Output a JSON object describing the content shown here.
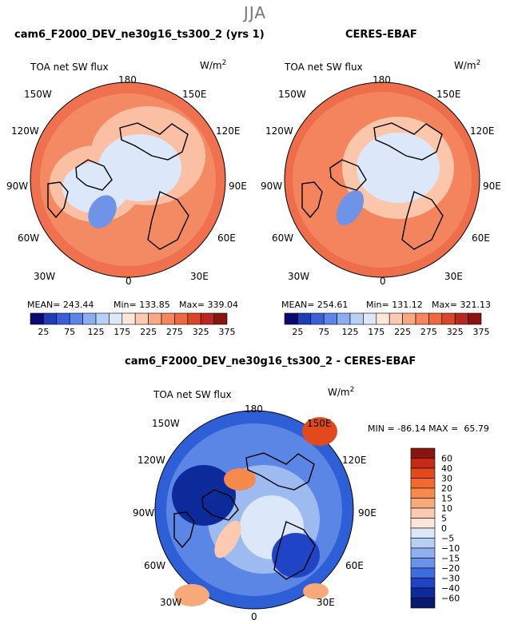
{
  "season": "JJA",
  "panels": [
    {
      "title": "cam6_F2000_DEV_ne30g16_ts300_2 (yrs 1)",
      "variable": "TOA net SW flux",
      "units": "W/m",
      "units_exp": "2",
      "stats": {
        "mean": "MEAN= 243.44",
        "min": "Min= 133.85",
        "max": "Max= 339.04"
      }
    },
    {
      "title": "CERES-EBAF",
      "variable": "TOA net SW flux",
      "units": "W/m",
      "units_exp": "2",
      "stats": {
        "mean": "MEAN= 254.61",
        "min": "Min= 131.12",
        "max": "Max= 321.13"
      }
    }
  ],
  "diff_panel": {
    "title": "cam6_F2000_DEV_ne30g16_ts300_2 - CERES-EBAF",
    "variable": "TOA net SW flux",
    "units": "W/m",
    "units_exp": "2",
    "minmax": "MIN = -86.14 MAX =  65.79"
  },
  "lon_labels": {
    "top": "180",
    "tl": "150W",
    "tr": "150E",
    "ul": "120W",
    "ur": "120E",
    "ml": "90W",
    "mr": "90E",
    "ll": "60W",
    "lr": "60E",
    "bl": "30W",
    "br": "30E",
    "bottom": "0"
  },
  "chart_data": [
    {
      "type": "heatmap",
      "projection": "north-polar-stereographic",
      "title": "cam6_F2000_DEV_ne30g16_ts300_2 (yrs 1)",
      "variable": "TOA net SW flux",
      "units": "W/m2",
      "colorbar": {
        "orientation": "horizontal",
        "levels": [
          25,
          75,
          125,
          175,
          225,
          275,
          325,
          375
        ],
        "colors": [
          "#0a0a6e",
          "#1f3cb5",
          "#3a5fd8",
          "#5b85e8",
          "#8caef0",
          "#b8d0f5",
          "#dce8fa",
          "#fde6da",
          "#fcc9b1",
          "#f9a884",
          "#f58660",
          "#ee6840",
          "#d9462a",
          "#b8281c",
          "#8a1410"
        ]
      },
      "stats": {
        "mean": 243.44,
        "min": 133.85,
        "max": 339.04
      }
    },
    {
      "type": "heatmap",
      "projection": "north-polar-stereographic",
      "title": "CERES-EBAF",
      "variable": "TOA net SW flux",
      "units": "W/m2",
      "colorbar": {
        "orientation": "horizontal",
        "levels": [
          25,
          75,
          125,
          175,
          225,
          275,
          325,
          375
        ],
        "colors": [
          "#0a0a6e",
          "#1f3cb5",
          "#3a5fd8",
          "#5b85e8",
          "#8caef0",
          "#b8d0f5",
          "#dce8fa",
          "#fde6da",
          "#fcc9b1",
          "#f9a884",
          "#f58660",
          "#ee6840",
          "#d9462a",
          "#b8281c",
          "#8a1410"
        ]
      },
      "stats": {
        "mean": 254.61,
        "min": 131.12,
        "max": 321.13
      }
    },
    {
      "type": "heatmap",
      "projection": "north-polar-stereographic",
      "title": "cam6_F2000_DEV_ne30g16_ts300_2 - CERES-EBAF",
      "variable": "TOA net SW flux",
      "units": "W/m2",
      "colorbar": {
        "orientation": "vertical",
        "levels": [
          "60",
          "40",
          "30",
          "20",
          "15",
          "10",
          "5",
          "0",
          "−5",
          "−10",
          "−15",
          "−20",
          "−30",
          "−40",
          "−60"
        ],
        "colors": [
          "#8a1410",
          "#c42a14",
          "#e24a1e",
          "#f26a30",
          "#f5894e",
          "#f8a97a",
          "#fbcab0",
          "#fde6d8",
          "#dce8fa",
          "#b7cff3",
          "#8eb0ee",
          "#6a92ea",
          "#3f6be0",
          "#1f45c6",
          "#0d2a9a",
          "#081a6e"
        ]
      },
      "stats": {
        "min": -86.14,
        "max": 65.79
      }
    }
  ]
}
